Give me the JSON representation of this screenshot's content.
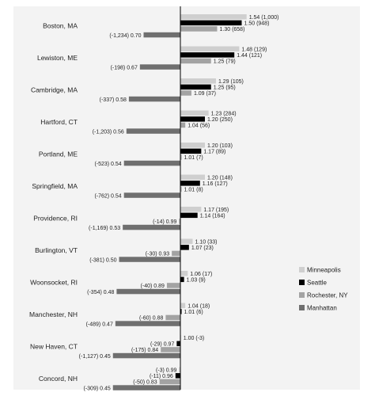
{
  "chart_data": {
    "type": "bar",
    "orientation": "horizontal",
    "baseline": 1.0,
    "legend_position": "right",
    "series": [
      {
        "name": "Minneapolis",
        "color": "#cfcfcf"
      },
      {
        "name": "Seattle",
        "color": "#000000"
      },
      {
        "name": "Rochester, NY",
        "color": "#a3a3a3"
      },
      {
        "name": "Manhattan",
        "color": "#6f6f6f"
      }
    ],
    "groups": [
      {
        "city": "Boston, MA",
        "bars": [
          {
            "series": "Minneapolis",
            "value": 1.54,
            "count": "(1,000)"
          },
          {
            "series": "Seattle",
            "value": 1.5,
            "count": "(948)"
          },
          {
            "series": "Rochester, NY",
            "value": 1.3,
            "count": "(658)"
          },
          {
            "series": "Manhattan",
            "value": 0.7,
            "count": "(-1,234)"
          }
        ]
      },
      {
        "city": "Lewiston, ME",
        "bars": [
          {
            "series": "Minneapolis",
            "value": 1.48,
            "count": "(129)"
          },
          {
            "series": "Seattle",
            "value": 1.44,
            "count": "(121)"
          },
          {
            "series": "Rochester, NY",
            "value": 1.25,
            "count": "(79)"
          },
          {
            "series": "Manhattan",
            "value": 0.67,
            "count": "(-198)"
          }
        ]
      },
      {
        "city": "Cambridge, MA",
        "bars": [
          {
            "series": "Minneapolis",
            "value": 1.29,
            "count": "(105)"
          },
          {
            "series": "Seattle",
            "value": 1.25,
            "count": "(95)"
          },
          {
            "series": "Rochester, NY",
            "value": 1.09,
            "count": "(37)"
          },
          {
            "series": "Manhattan",
            "value": 0.58,
            "count": "(-337)"
          }
        ]
      },
      {
        "city": "Hartford, CT",
        "bars": [
          {
            "series": "Minneapolis",
            "value": 1.23,
            "count": "(284)"
          },
          {
            "series": "Seattle",
            "value": 1.2,
            "count": "(250)"
          },
          {
            "series": "Rochester, NY",
            "value": 1.04,
            "count": "(56)"
          },
          {
            "series": "Manhattan",
            "value": 0.56,
            "count": "(-1,203)"
          }
        ]
      },
      {
        "city": "Portland, ME",
        "bars": [
          {
            "series": "Minneapolis",
            "value": 1.2,
            "count": "(103)"
          },
          {
            "series": "Seattle",
            "value": 1.17,
            "count": "(89)"
          },
          {
            "series": "Rochester, NY",
            "value": 1.01,
            "count": "(7)"
          },
          {
            "series": "Manhattan",
            "value": 0.54,
            "count": "(-523)"
          }
        ]
      },
      {
        "city": "Springfield, MA",
        "bars": [
          {
            "series": "Minneapolis",
            "value": 1.2,
            "count": "(148)"
          },
          {
            "series": "Seattle",
            "value": 1.16,
            "count": "(127)"
          },
          {
            "series": "Rochester, NY",
            "value": 1.01,
            "count": "(8)"
          },
          {
            "series": "Manhattan",
            "value": 0.54,
            "count": "(-762)"
          }
        ]
      },
      {
        "city": "Providence, RI",
        "bars": [
          {
            "series": "Minneapolis",
            "value": 1.17,
            "count": "(195)"
          },
          {
            "series": "Seattle",
            "value": 1.14,
            "count": "(164)"
          },
          {
            "series": "Rochester, NY",
            "value": 0.99,
            "count": "(-14)"
          },
          {
            "series": "Manhattan",
            "value": 0.53,
            "count": "(-1,169)"
          }
        ]
      },
      {
        "city": "Burlington, VT",
        "bars": [
          {
            "series": "Minneapolis",
            "value": 1.1,
            "count": "(33)"
          },
          {
            "series": "Seattle",
            "value": 1.07,
            "count": "(23)"
          },
          {
            "series": "Rochester, NY",
            "value": 0.93,
            "count": "(-30)"
          },
          {
            "series": "Manhattan",
            "value": 0.5,
            "count": "(-381)"
          }
        ]
      },
      {
        "city": "Woonsocket, RI",
        "bars": [
          {
            "series": "Minneapolis",
            "value": 1.06,
            "count": "(17)"
          },
          {
            "series": "Seattle",
            "value": 1.03,
            "count": "(9)"
          },
          {
            "series": "Rochester, NY",
            "value": 0.89,
            "count": "(-40)"
          },
          {
            "series": "Manhattan",
            "value": 0.48,
            "count": "(-354)"
          }
        ]
      },
      {
        "city": "Manchester, NH",
        "bars": [
          {
            "series": "Minneapolis",
            "value": 1.04,
            "count": "(18)"
          },
          {
            "series": "Seattle",
            "value": 1.01,
            "count": "(6)"
          },
          {
            "series": "Rochester, NY",
            "value": 0.88,
            "count": "(-60)"
          },
          {
            "series": "Manhattan",
            "value": 0.47,
            "count": "(-489)"
          }
        ]
      },
      {
        "city": "New Haven, CT",
        "bars": [
          {
            "series": "Minneapolis",
            "value": 1.0,
            "count": "(-3)"
          },
          {
            "series": "Seattle",
            "value": 0.97,
            "count": "(-29)"
          },
          {
            "series": "Rochester, NY",
            "value": 0.84,
            "count": "(-175)"
          },
          {
            "series": "Manhattan",
            "value": 0.45,
            "count": "(-1,127)"
          }
        ]
      },
      {
        "city": "Concord, NH",
        "bars": [
          {
            "series": "Minneapolis",
            "value": 0.99,
            "count": "(-3)"
          },
          {
            "series": "Seattle",
            "value": 0.96,
            "count": "(-11)"
          },
          {
            "series": "Rochester, NY",
            "value": 0.83,
            "count": "(-50)"
          },
          {
            "series": "Manhattan",
            "value": 0.45,
            "count": "(-309)"
          }
        ]
      }
    ]
  }
}
